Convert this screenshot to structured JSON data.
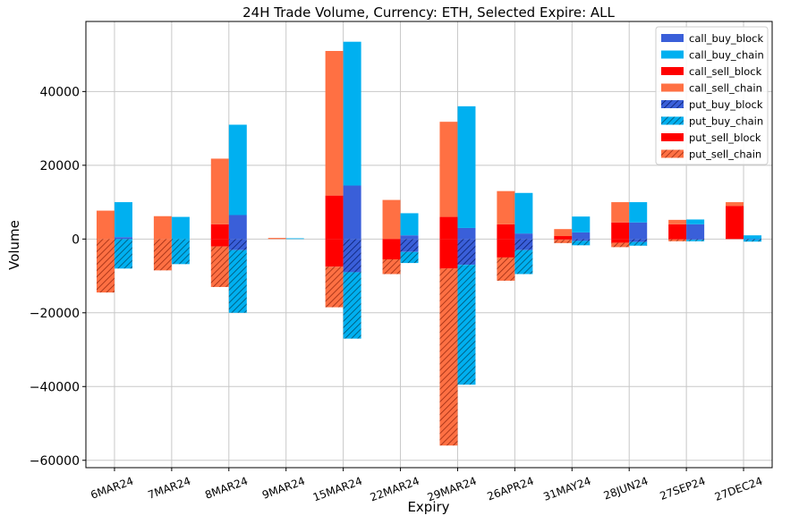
{
  "chart_data": {
    "type": "bar",
    "title": "24H Trade Volume, Currency: ETH, Selected Expire: ALL",
    "xlabel": "Expiry",
    "ylabel": "Volume",
    "ylim": [
      -62000,
      59000
    ],
    "yticks": [
      -60000,
      -40000,
      -20000,
      0,
      20000,
      40000
    ],
    "ytick_labels": [
      "−60000",
      "−40000",
      "−20000",
      "0",
      "20000",
      "40000"
    ],
    "grid": true,
    "legend_position": "top-right",
    "categories": [
      "6MAR24",
      "7MAR24",
      "8MAR24",
      "9MAR24",
      "15MAR24",
      "22MAR24",
      "29MAR24",
      "26APR24",
      "31MAY24",
      "28JUN24",
      "27SEP24",
      "27DEC24"
    ],
    "series": [
      {
        "name": "call_buy_block",
        "color": "#3a5fd9",
        "hatch": false,
        "group": "buy",
        "values": [
          500,
          0,
          6500,
          0,
          14500,
          1000,
          3000,
          1500,
          1800,
          4500,
          4000,
          0
        ]
      },
      {
        "name": "call_buy_chain",
        "color": "#00b0f0",
        "hatch": false,
        "group": "buy",
        "values": [
          9500,
          6000,
          24500,
          200,
          39000,
          6000,
          33000,
          11000,
          4300,
          5500,
          1300,
          1000
        ]
      },
      {
        "name": "call_sell_block",
        "color": "#ff0000",
        "hatch": false,
        "group": "sell",
        "values": [
          0,
          0,
          4000,
          0,
          11800,
          0,
          6000,
          4000,
          800,
          4500,
          4000,
          9000
        ]
      },
      {
        "name": "call_sell_chain",
        "color": "#ff7043",
        "hatch": false,
        "group": "sell",
        "values": [
          7700,
          6200,
          17800,
          300,
          39200,
          10600,
          25800,
          9000,
          1900,
          5500,
          1200,
          1000
        ]
      },
      {
        "name": "put_buy_block",
        "color": "#3a5fd9",
        "hatch": true,
        "group": "buy",
        "values": [
          0,
          0,
          -3000,
          0,
          -9000,
          -3500,
          -7000,
          -3000,
          -500,
          -800,
          -200,
          -100
        ]
      },
      {
        "name": "put_buy_chain",
        "color": "#00b0f0",
        "hatch": true,
        "group": "buy",
        "values": [
          -8000,
          -6800,
          -17000,
          0,
          -18000,
          -3000,
          -32500,
          -6500,
          -1200,
          -1000,
          -400,
          -600
        ]
      },
      {
        "name": "put_sell_block",
        "color": "#ff0000",
        "hatch": false,
        "group": "sell",
        "values": [
          0,
          0,
          -2000,
          0,
          -7500,
          -5500,
          -8000,
          -5000,
          -200,
          -1000,
          -100,
          0
        ]
      },
      {
        "name": "put_sell_chain",
        "color": "#ff7043",
        "hatch": true,
        "group": "sell",
        "values": [
          -14500,
          -8500,
          -11000,
          0,
          -11000,
          -4000,
          -48000,
          -6300,
          -900,
          -1200,
          -500,
          0
        ]
      }
    ]
  }
}
